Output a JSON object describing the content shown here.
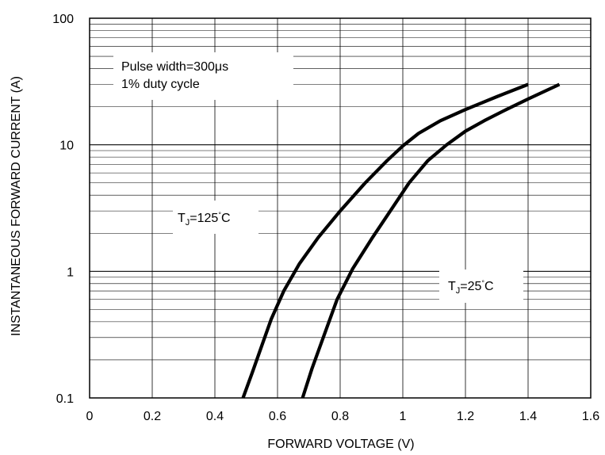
{
  "chart_data": {
    "type": "line",
    "xlabel": "FORWARD VOLTAGE (V)",
    "ylabel": "INSTANTANEOUS FORWARD CURRENT (A)",
    "xlim": [
      0,
      1.6
    ],
    "ylim": [
      0.1,
      100
    ],
    "y_scale": "log",
    "grid": true,
    "x_ticks": [
      "0",
      "0.2",
      "0.4",
      "0.6",
      "0.8",
      "1",
      "1.2",
      "1.4",
      "1.6"
    ],
    "y_ticks": [
      "0.1",
      "1",
      "10",
      "100"
    ],
    "annotations": {
      "pulse_line1": "Pulse width=300μs",
      "pulse_line2": "1% duty cycle",
      "tj125_prefix": "T",
      "tj125_sub": "J",
      "tj125_value": "=125",
      "tj125_deg": "°",
      "tj125_unit": "C",
      "tj25_prefix": "T",
      "tj25_sub": "J",
      "tj25_value": "=25",
      "tj25_deg": "°",
      "tj25_unit": "C"
    },
    "series": [
      {
        "x": [
          0.49,
          0.52,
          0.55,
          0.58,
          0.62,
          0.67,
          0.73,
          0.8,
          0.88,
          0.95,
          1.0,
          1.05,
          1.12,
          1.2,
          1.3,
          1.4
        ],
        "y": [
          0.1,
          0.16,
          0.26,
          0.42,
          0.7,
          1.15,
          1.85,
          3.0,
          5.0,
          7.5,
          9.8,
          12.3,
          15.5,
          19.0,
          24.0,
          30.0
        ]
      },
      {
        "x": [
          0.68,
          0.71,
          0.75,
          0.79,
          0.84,
          0.9,
          0.96,
          1.02,
          1.08,
          1.14,
          1.2,
          1.26,
          1.33,
          1.4,
          1.5
        ],
        "y": [
          0.1,
          0.17,
          0.32,
          0.6,
          1.05,
          1.8,
          3.0,
          5.0,
          7.5,
          10.0,
          12.8,
          15.5,
          19.0,
          23.0,
          30.0
        ]
      }
    ]
  }
}
